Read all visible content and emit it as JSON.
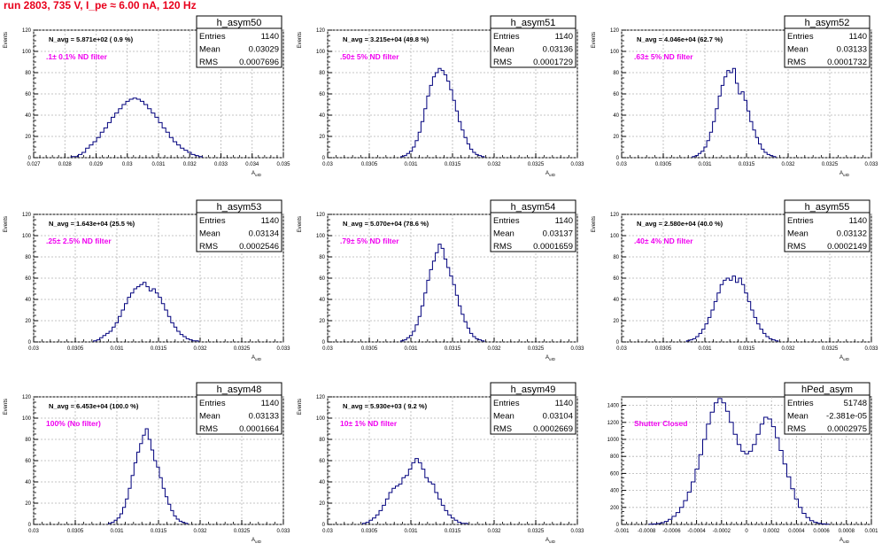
{
  "run_title": "run 2803,   735 V, I_pe ≈ 6.00 nA, 120 Hz",
  "colors": {
    "hist_line": "#00007d",
    "filter_label": "#f000f0",
    "run_title": "#e8001c",
    "grid": "#b4b4b4"
  },
  "chart_data": [
    {
      "type": "histogram",
      "name": "h_asym50",
      "navg": "N_avg = 5.871e+02 ( 0.9 %)",
      "filter": ".1± 0.1% ND filter",
      "stats": {
        "entries": "1140",
        "mean": "0.03029",
        "rms": "0.0007696"
      },
      "xlim": [
        0.027,
        0.035
      ],
      "ylim": [
        0,
        120
      ],
      "xticks": [
        "0.027",
        "0.028",
        "0.029",
        "0.03",
        "0.031",
        "0.032",
        "0.033",
        "0.034",
        "0.035"
      ],
      "yticks": [
        "0",
        "20",
        "40",
        "60",
        "80",
        "100",
        "120"
      ],
      "xlabel": "A_uID",
      "ylabel": "Events",
      "counts": [
        1,
        1,
        3,
        5,
        9,
        12,
        15,
        19,
        24,
        28,
        33,
        38,
        42,
        46,
        50,
        53,
        55,
        56,
        55,
        53,
        50,
        46,
        42,
        38,
        33,
        28,
        24,
        19,
        15,
        12,
        9,
        7,
        5,
        3,
        2,
        1
      ],
      "bin_range": [
        0.0282,
        0.0324
      ]
    },
    {
      "type": "histogram",
      "name": "h_asym51",
      "navg": "N_avg = 3.215e+04 (49.8 %)",
      "filter": ".50± 5% ND filter",
      "stats": {
        "entries": "1140",
        "mean": "0.03136",
        "rms": "0.0001729"
      },
      "xlim": [
        0.03,
        0.033
      ],
      "ylim": [
        0,
        120
      ],
      "xticks": [
        "0.03",
        "0.0305",
        "0.031",
        "0.0315",
        "0.032",
        "0.0325",
        "0.033"
      ],
      "yticks": [
        "0",
        "20",
        "40",
        "60",
        "80",
        "100",
        "120"
      ],
      "xlabel": "A_uID",
      "ylabel": "Events",
      "counts": [
        1,
        2,
        4,
        6,
        10,
        16,
        24,
        34,
        46,
        58,
        68,
        76,
        80,
        84,
        82,
        78,
        72,
        64,
        54,
        44,
        34,
        26,
        19,
        13,
        8,
        5,
        3,
        2,
        1
      ],
      "bin_range": [
        0.03088,
        0.03188
      ]
    },
    {
      "type": "histogram",
      "name": "h_asym52",
      "navg": "N_avg = 4.046e+04 (62.7 %)",
      "filter": ".63± 5% ND filter",
      "stats": {
        "entries": "1140",
        "mean": "0.03133",
        "rms": "0.0001732"
      },
      "xlim": [
        0.03,
        0.033
      ],
      "ylim": [
        0,
        120
      ],
      "xticks": [
        "0.03",
        "0.0305",
        "0.031",
        "0.0315",
        "0.032",
        "0.0325",
        "0.033"
      ],
      "yticks": [
        "0",
        "20",
        "40",
        "60",
        "80",
        "100",
        "120"
      ],
      "xlabel": "A_uID",
      "ylabel": "Events",
      "counts": [
        1,
        2,
        4,
        6,
        10,
        16,
        24,
        34,
        46,
        58,
        68,
        76,
        82,
        80,
        84,
        70,
        60,
        62,
        54,
        44,
        34,
        26,
        19,
        13,
        8,
        5,
        3,
        2,
        1
      ],
      "bin_range": [
        0.03085,
        0.03185
      ]
    },
    {
      "type": "histogram",
      "name": "h_asym53",
      "navg": "N_avg = 1.643e+04 (25.5 %)",
      "filter": ".25± 2.5% ND filter",
      "stats": {
        "entries": "1140",
        "mean": "0.03134",
        "rms": "0.0002546"
      },
      "xlim": [
        0.03,
        0.033
      ],
      "ylim": [
        0,
        120
      ],
      "xticks": [
        "0.03",
        "0.0305",
        "0.031",
        "0.0315",
        "0.032",
        "0.0325",
        "0.033"
      ],
      "yticks": [
        "0",
        "20",
        "40",
        "60",
        "80",
        "100",
        "120"
      ],
      "xlabel": "A_uID",
      "ylabel": "Events",
      "counts": [
        1,
        2,
        4,
        6,
        8,
        10,
        14,
        18,
        24,
        30,
        36,
        42,
        46,
        50,
        52,
        54,
        56,
        52,
        48,
        50,
        46,
        42,
        36,
        30,
        24,
        18,
        14,
        10,
        7,
        5,
        3,
        2,
        1,
        1
      ],
      "bin_range": [
        0.03072,
        0.03198
      ]
    },
    {
      "type": "histogram",
      "name": "h_asym54",
      "navg": "N_avg = 5.070e+04 (78.6 %)",
      "filter": ".79± 5% ND filter",
      "stats": {
        "entries": "1140",
        "mean": "0.03137",
        "rms": "0.0001659"
      },
      "xlim": [
        0.03,
        0.033
      ],
      "ylim": [
        0,
        120
      ],
      "xticks": [
        "0.03",
        "0.0305",
        "0.031",
        "0.0315",
        "0.032",
        "0.0325",
        "0.033"
      ],
      "yticks": [
        "0",
        "20",
        "40",
        "60",
        "80",
        "100",
        "120"
      ],
      "xlabel": "A_uID",
      "ylabel": "Events",
      "counts": [
        1,
        2,
        4,
        6,
        10,
        16,
        24,
        34,
        46,
        58,
        68,
        76,
        84,
        92,
        88,
        78,
        70,
        62,
        54,
        44,
        34,
        26,
        19,
        13,
        8,
        5,
        3,
        2,
        1
      ],
      "bin_range": [
        0.03088,
        0.03188
      ]
    },
    {
      "type": "histogram",
      "name": "h_asym55",
      "navg": "N_avg = 2.580e+04 (40.0 %)",
      "filter": ".40± 4% ND filter",
      "stats": {
        "entries": "1140",
        "mean": "0.03132",
        "rms": "0.0002149"
      },
      "xlim": [
        0.03,
        0.033
      ],
      "ylim": [
        0,
        120
      ],
      "xticks": [
        "0.03",
        "0.0305",
        "0.031",
        "0.0315",
        "0.032",
        "0.0325",
        "0.033"
      ],
      "yticks": [
        "0",
        "20",
        "40",
        "60",
        "80",
        "100",
        "120"
      ],
      "xlabel": "A_uID",
      "ylabel": "Events",
      "counts": [
        1,
        2,
        3,
        5,
        8,
        12,
        17,
        23,
        30,
        38,
        46,
        54,
        58,
        60,
        58,
        62,
        56,
        60,
        54,
        46,
        38,
        30,
        23,
        17,
        12,
        8,
        5,
        3,
        2,
        1
      ],
      "bin_range": [
        0.03078,
        0.03188
      ]
    },
    {
      "type": "histogram",
      "name": "h_asym48",
      "navg": "N_avg = 6.453e+04 (100.0 %)",
      "filter": "100% (No filter)",
      "stats": {
        "entries": "1140",
        "mean": "0.03133",
        "rms": "0.0001664"
      },
      "xlim": [
        0.03,
        0.033
      ],
      "ylim": [
        0,
        120
      ],
      "xticks": [
        "0.03",
        "0.0305",
        "0.031",
        "0.0315",
        "0.032",
        "0.0325",
        "0.033"
      ],
      "yticks": [
        "0",
        "20",
        "40",
        "60",
        "80",
        "100",
        "120"
      ],
      "xlabel": "A_uID",
      "ylabel": "Events",
      "counts": [
        1,
        2,
        4,
        6,
        10,
        16,
        24,
        34,
        46,
        58,
        68,
        76,
        84,
        90,
        80,
        70,
        60,
        54,
        44,
        34,
        26,
        19,
        13,
        8,
        5,
        3,
        2,
        1
      ],
      "bin_range": [
        0.0309,
        0.03185
      ]
    },
    {
      "type": "histogram",
      "name": "h_asym49",
      "navg": "N_avg = 5.930e+03 ( 9.2 %)",
      "filter": "10± 1% ND filter",
      "stats": {
        "entries": "1140",
        "mean": "0.03104",
        "rms": "0.0002669"
      },
      "xlim": [
        0.03,
        0.033
      ],
      "ylim": [
        0,
        120
      ],
      "xticks": [
        "0.03",
        "0.0305",
        "0.031",
        "0.0315",
        "0.032",
        "0.0325",
        "0.033"
      ],
      "yticks": [
        "0",
        "20",
        "40",
        "60",
        "80",
        "100",
        "120"
      ],
      "xlabel": "A_uID",
      "ylabel": "Events",
      "counts": [
        1,
        2,
        4,
        6,
        9,
        13,
        18,
        24,
        30,
        34,
        36,
        38,
        44,
        46,
        52,
        58,
        62,
        58,
        52,
        44,
        40,
        38,
        30,
        24,
        18,
        13,
        9,
        6,
        4,
        2,
        1,
        1
      ],
      "bin_range": [
        0.03042,
        0.03168
      ]
    },
    {
      "type": "histogram",
      "name": "hPed_asym",
      "navg": "",
      "filter": "Shutter Closed",
      "stats": {
        "entries": "51748",
        "mean": "-2.381e-05",
        "rms": "0.0002975"
      },
      "xlim": [
        -0.001,
        0.001
      ],
      "ylim": [
        0,
        1500
      ],
      "xticks": [
        "-0.001",
        "-0.0008",
        "-0.0006",
        "-0.0004",
        "-0.0002",
        "0",
        "0.0002",
        "0.0004",
        "0.0006",
        "0.0008",
        "0.001"
      ],
      "yticks": [
        "0",
        "200",
        "400",
        "600",
        "800",
        "1000",
        "1200",
        "1400"
      ],
      "xlabel": "A_uID",
      "ylabel": "",
      "counts": [
        2,
        5,
        10,
        20,
        35,
        60,
        95,
        140,
        200,
        280,
        380,
        500,
        650,
        820,
        1000,
        1180,
        1320,
        1430,
        1480,
        1430,
        1330,
        1200,
        1060,
        940,
        860,
        830,
        860,
        940,
        1060,
        1180,
        1260,
        1240,
        1150,
        1020,
        870,
        710,
        560,
        420,
        300,
        200,
        130,
        80,
        45,
        25,
        12,
        6,
        3
      ],
      "bin_range": [
        -0.00078,
        0.00066
      ]
    }
  ]
}
